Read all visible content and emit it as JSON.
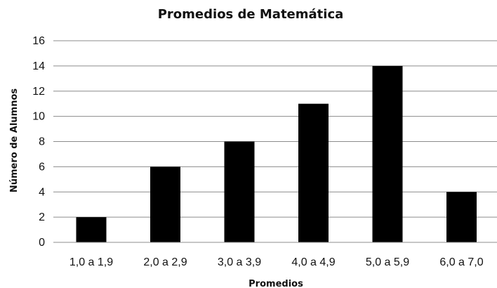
{
  "chart_data": {
    "type": "bar",
    "title": "Promedios de Matemática",
    "xlabel": "Promedios",
    "ylabel": "Número de Alumnos",
    "categories": [
      "1,0 a 1,9",
      "2,0 a 2,9",
      "3,0 a 3,9",
      "4,0 a 4,9",
      "5,0 a 5,9",
      "6,0 a 7,0"
    ],
    "values": [
      2,
      6,
      8,
      11,
      14,
      4
    ],
    "ylim": [
      0,
      16
    ],
    "yticks": [
      0,
      2,
      4,
      6,
      8,
      10,
      12,
      14,
      16
    ],
    "grid": true,
    "bar_color": "#000000",
    "grid_color": "#8c8c8c"
  }
}
